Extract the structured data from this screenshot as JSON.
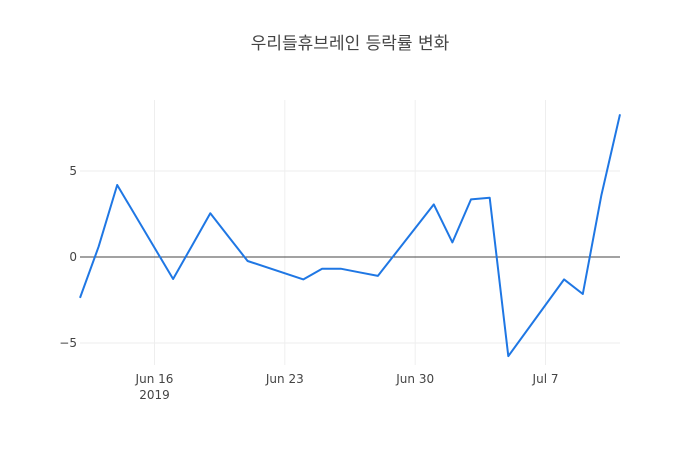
{
  "chart_data": {
    "type": "line",
    "title": "우리들휴브레인 등락률 변화",
    "xlabel": "",
    "ylabel": "",
    "x": [
      "2019-06-12",
      "2019-06-13",
      "2019-06-14",
      "2019-06-17",
      "2019-06-18",
      "2019-06-19",
      "2019-06-20",
      "2019-06-21",
      "2019-06-24",
      "2019-06-25",
      "2019-06-26",
      "2019-06-27",
      "2019-06-28",
      "2019-07-01",
      "2019-07-02",
      "2019-07-03",
      "2019-07-04",
      "2019-07-05",
      "2019-07-08",
      "2019-07-09",
      "2019-07-10",
      "2019-07-11"
    ],
    "series": [
      {
        "name": "등락률",
        "color": "#1f77e4",
        "values": [
          -2.38,
          0.6,
          4.19,
          -1.28,
          0.63,
          2.54,
          1.15,
          -0.23,
          -1.3,
          -0.68,
          -0.68,
          -0.89,
          -1.1,
          3.06,
          0.85,
          3.35,
          3.45,
          -5.76,
          -1.3,
          -2.15,
          3.6,
          8.3
        ]
      }
    ],
    "xlim": [
      "2019-06-12",
      "2019-07-11"
    ],
    "ylim": [
      -6.28,
      9.13
    ],
    "x_ticks": [
      {
        "date": "2019-06-16",
        "label": "Jun 16",
        "sublabel": "2019"
      },
      {
        "date": "2019-06-23",
        "label": "Jun 23",
        "sublabel": ""
      },
      {
        "date": "2019-06-30",
        "label": "Jun 30",
        "sublabel": ""
      },
      {
        "date": "2019-07-07",
        "label": "Jul 7",
        "sublabel": ""
      }
    ],
    "y_ticks": [
      {
        "value": 5,
        "label": "5"
      },
      {
        "value": 0,
        "label": "0"
      },
      {
        "value": -5,
        "label": "−5"
      }
    ],
    "grid": true,
    "legend": "none"
  }
}
